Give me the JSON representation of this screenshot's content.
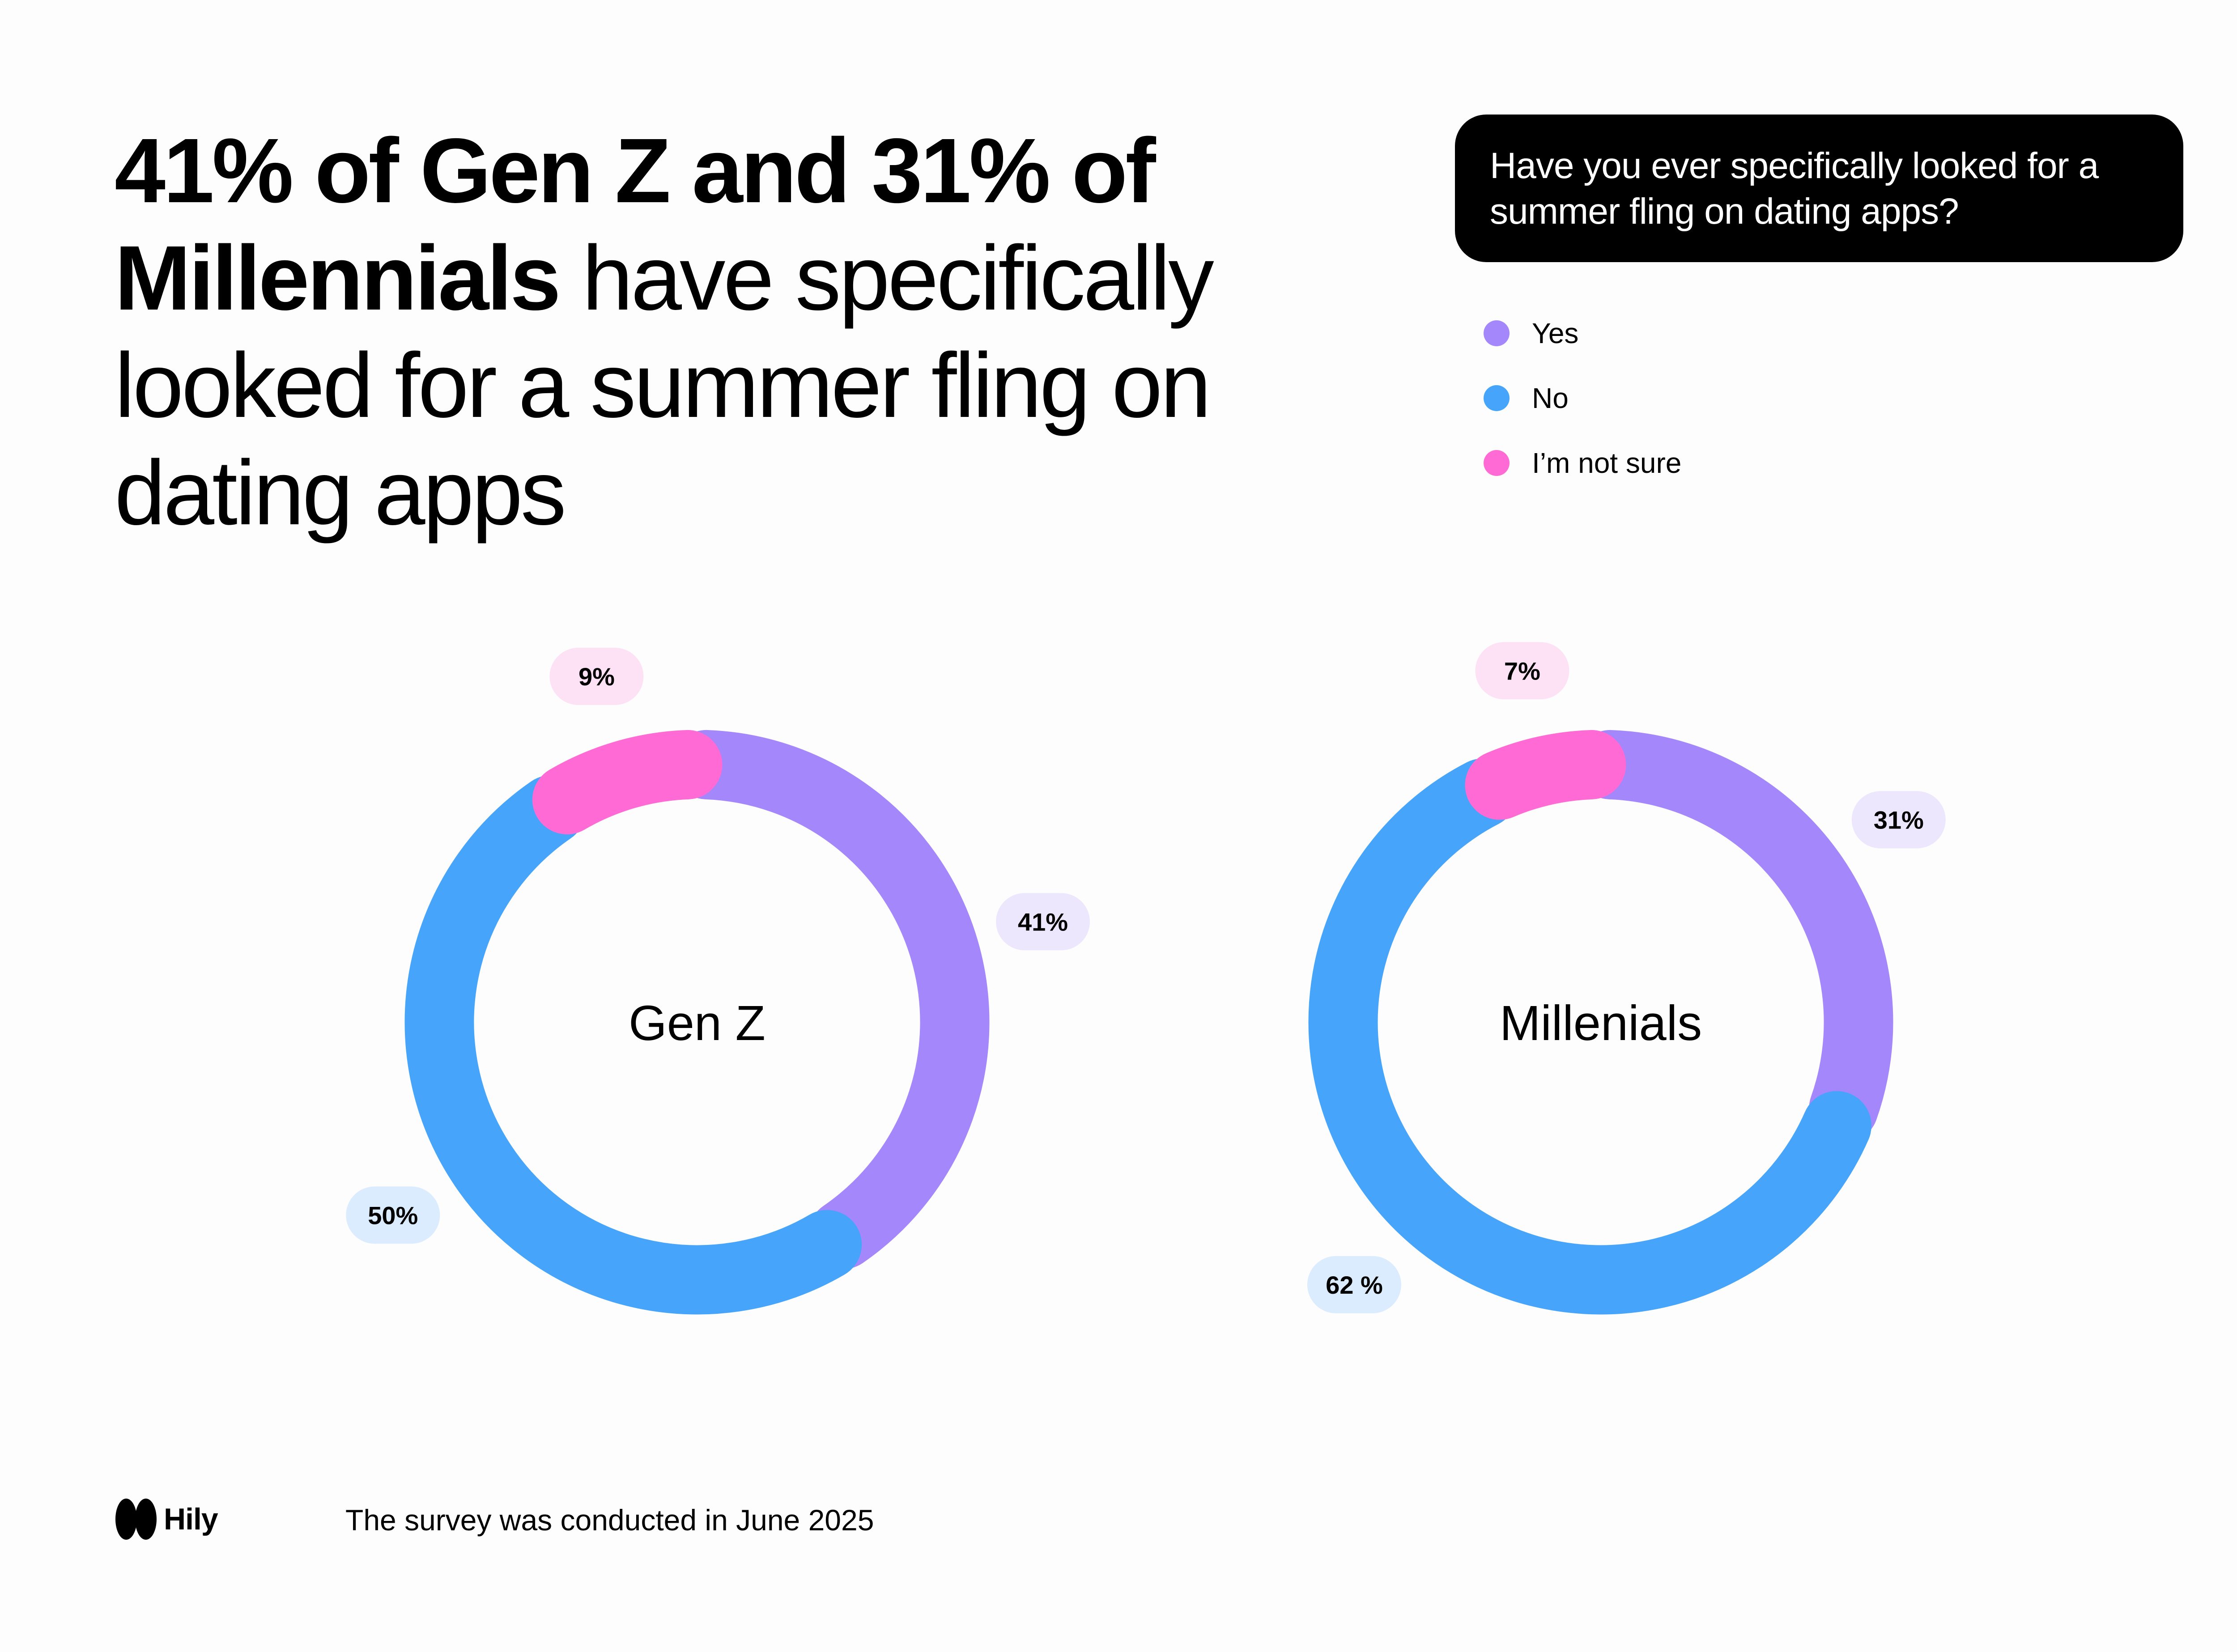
{
  "headline": {
    "bold_part": "41% of Gen Z and 31% of Millennials",
    "regular_part": "have specifically looked for a summer fling on dating apps"
  },
  "question": "Have you ever specifically looked for a summer fling on dating apps?",
  "legend": [
    {
      "label": "Yes",
      "color": "#a387fb"
    },
    {
      "label": "No",
      "color": "#46a5fb"
    },
    {
      "label": "I’m not sure",
      "color": "#ff6ad5"
    }
  ],
  "chart_data": [
    {
      "type": "pie",
      "variant": "donut",
      "center_label": "Gen Z",
      "categories": [
        "Yes",
        "No",
        "I’m not sure"
      ],
      "values": [
        41,
        50,
        9
      ],
      "data_labels": [
        "41%",
        "50%",
        "9%"
      ],
      "colors": [
        "#a387fb",
        "#46a5fb",
        "#ff6ad5"
      ]
    },
    {
      "type": "pie",
      "variant": "donut",
      "center_label": "Millenials",
      "categories": [
        "Yes",
        "No",
        "I’m not sure"
      ],
      "values": [
        31,
        62,
        7
      ],
      "data_labels": [
        "31%",
        "62 %",
        "7%"
      ],
      "colors": [
        "#a387fb",
        "#46a5fb",
        "#ff6ad5"
      ]
    }
  ],
  "label_bg_colors": [
    "#ede7fe",
    "#dbecfe",
    "#fde2f5"
  ],
  "footer": {
    "logo_text": "Hily",
    "logo_icon": "hily-logo-icon",
    "note": "The survey was conducted in June 2025"
  }
}
